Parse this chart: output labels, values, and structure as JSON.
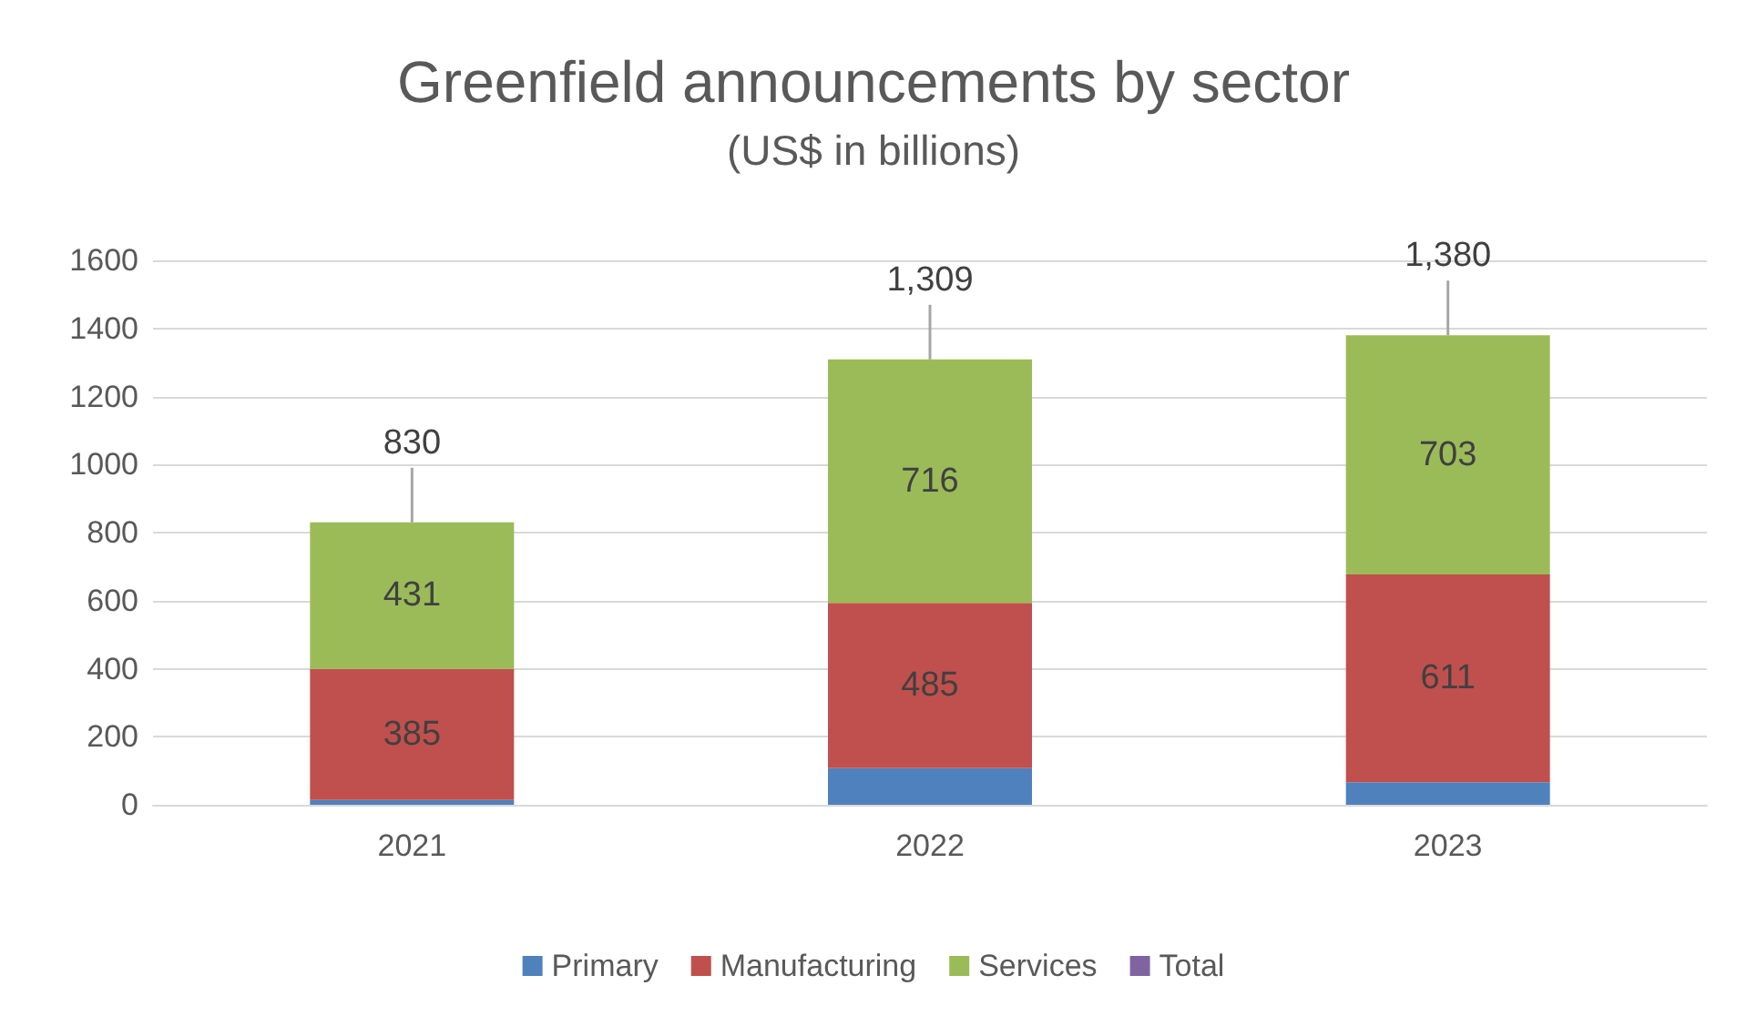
{
  "chart_data": {
    "type": "bar",
    "title": "Greenfield announcements by sector",
    "subtitle": "(US$ in billions)",
    "categories": [
      "2021",
      "2022",
      "2023"
    ],
    "stacked": true,
    "series": [
      {
        "name": "Primary",
        "color": "#4f81bd",
        "values": [
          14,
          108,
          66
        ],
        "value_labels": [
          null,
          null,
          null
        ]
      },
      {
        "name": "Manufacturing",
        "color": "#c0504d",
        "values": [
          385,
          485,
          611
        ],
        "value_labels": [
          "385",
          "485",
          "611"
        ]
      },
      {
        "name": "Services",
        "color": "#9bbb59",
        "values": [
          431,
          716,
          703
        ],
        "value_labels": [
          "431",
          "716",
          "703"
        ]
      },
      {
        "name": "Total",
        "color": "#8064a2",
        "values": [
          null,
          null,
          null
        ]
      }
    ],
    "totals": [
      "830",
      "1,309",
      "1,380"
    ],
    "ylim": [
      0,
      1600
    ],
    "yticks": [
      0,
      200,
      400,
      600,
      800,
      1000,
      1200,
      1400,
      1600
    ],
    "grid": "y",
    "legend": "bottom"
  }
}
